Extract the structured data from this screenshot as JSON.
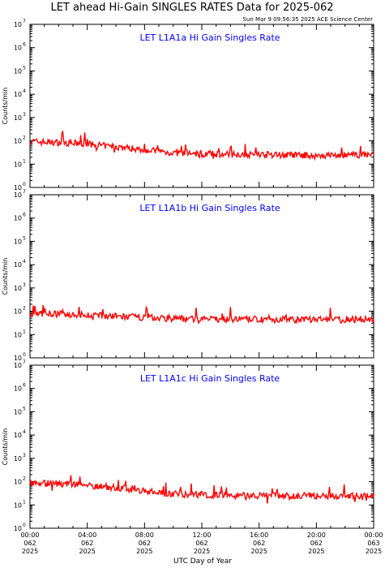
{
  "figure": {
    "title": "LET ahead Hi-Gain SINGLES RATES Data for 2025-062",
    "timestamp": "Sun Mar  9 09:56:35 2025 ACE Science Center",
    "xlabel": "UTC Day of Year"
  },
  "chart_data": [
    {
      "type": "line",
      "title": "LET L1A1a Hi Gain Singles Rate",
      "ylabel": "Counts/min",
      "yscale": "log",
      "ylim": [
        1,
        10000000
      ],
      "xlim": [
        0,
        24
      ],
      "x_unit": "hours since 2025-062 00:00 UTC",
      "x": [
        0,
        1,
        2,
        3,
        4,
        5,
        6,
        7,
        8,
        9,
        10,
        11,
        12,
        13,
        14,
        15,
        16,
        17,
        18,
        19,
        20,
        21,
        22,
        23,
        24
      ],
      "series": [
        {
          "name": "",
          "values": [
            95,
            88,
            85,
            80,
            72,
            62,
            56,
            48,
            42,
            35,
            30,
            30,
            28,
            27,
            26,
            27,
            25,
            26,
            24,
            25,
            23,
            24,
            24,
            25,
            26
          ]
        }
      ],
      "color": "#ff0000",
      "title_color": "#0000ff"
    },
    {
      "type": "line",
      "title": "LET L1A1b Hi Gain Singles Rate",
      "ylabel": "Counts/min",
      "yscale": "log",
      "ylim": [
        1,
        10000000
      ],
      "xlim": [
        0,
        24
      ],
      "x": [
        0,
        1,
        2,
        3,
        4,
        5,
        6,
        7,
        8,
        9,
        10,
        11,
        12,
        13,
        14,
        15,
        16,
        17,
        18,
        19,
        20,
        21,
        22,
        23,
        24
      ],
      "series": [
        {
          "name": "",
          "values": [
            82,
            80,
            76,
            72,
            68,
            64,
            60,
            57,
            54,
            52,
            50,
            48,
            47,
            46,
            46,
            45,
            45,
            44,
            44,
            44,
            44,
            44,
            45,
            45,
            46
          ]
        }
      ],
      "color": "#ff0000",
      "title_color": "#0000ff"
    },
    {
      "type": "line",
      "title": "LET L1A1c Hi Gain Singles Rate",
      "ylabel": "Counts/min",
      "yscale": "log",
      "ylim": [
        1,
        10000000
      ],
      "xlim": [
        0,
        24
      ],
      "x": [
        0,
        1,
        2,
        3,
        4,
        5,
        6,
        7,
        8,
        9,
        10,
        11,
        12,
        13,
        14,
        15,
        16,
        17,
        18,
        19,
        20,
        21,
        22,
        23,
        24
      ],
      "series": [
        {
          "name": "",
          "values": [
            88,
            85,
            82,
            78,
            70,
            62,
            55,
            48,
            40,
            34,
            30,
            29,
            28,
            27,
            26,
            26,
            25,
            25,
            24,
            25,
            24,
            24,
            25,
            25,
            26
          ]
        }
      ],
      "color": "#ff0000",
      "title_color": "#0000ff"
    }
  ],
  "x_ticks": [
    {
      "time": "00:00",
      "day": "062",
      "year": "2025"
    },
    {
      "time": "04:00",
      "day": "062",
      "year": "2025"
    },
    {
      "time": "08:00",
      "day": "062",
      "year": "2025"
    },
    {
      "time": "12:00",
      "day": "062",
      "year": "2025"
    },
    {
      "time": "16:00",
      "day": "062",
      "year": "2025"
    },
    {
      "time": "20:00",
      "day": "062",
      "year": "2025"
    },
    {
      "time": "00:00",
      "day": "063",
      "year": "2025"
    }
  ],
  "y_tick_labels": [
    "10",
    "10",
    "10",
    "10",
    "10",
    "10",
    "10",
    "10"
  ],
  "y_tick_exponents": [
    "0",
    "1",
    "2",
    "3",
    "4",
    "5",
    "6",
    "7"
  ]
}
